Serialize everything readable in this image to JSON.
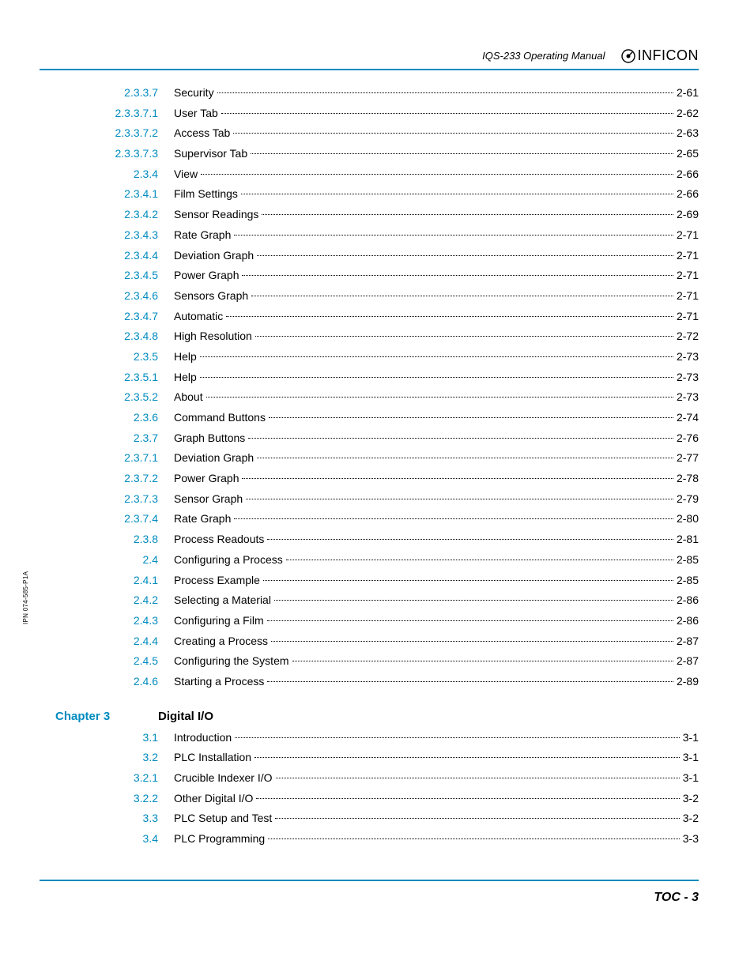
{
  "header": {
    "manual_title": "IQS-233 Operating Manual",
    "logo_text": "INFICON"
  },
  "side_label": "IPN 074-585-P1A",
  "toc_entries": [
    {
      "num": "2.3.3.7",
      "title": "Security",
      "page": "2-61"
    },
    {
      "num": "2.3.3.7.1",
      "title": "User Tab",
      "page": "2-62"
    },
    {
      "num": "2.3.3.7.2",
      "title": "Access Tab",
      "page": "2-63"
    },
    {
      "num": "2.3.3.7.3",
      "title": "Supervisor Tab",
      "page": "2-65"
    },
    {
      "num": "2.3.4",
      "title": "View",
      "page": "2-66"
    },
    {
      "num": "2.3.4.1",
      "title": "Film Settings",
      "page": "2-66"
    },
    {
      "num": "2.3.4.2",
      "title": "Sensor Readings",
      "page": "2-69"
    },
    {
      "num": "2.3.4.3",
      "title": "Rate Graph",
      "page": "2-71"
    },
    {
      "num": "2.3.4.4",
      "title": "Deviation Graph",
      "page": "2-71"
    },
    {
      "num": "2.3.4.5",
      "title": "Power Graph",
      "page": "2-71"
    },
    {
      "num": "2.3.4.6",
      "title": "Sensors Graph",
      "page": "2-71"
    },
    {
      "num": "2.3.4.7",
      "title": "Automatic",
      "page": "2-71"
    },
    {
      "num": "2.3.4.8",
      "title": "High Resolution",
      "page": "2-72"
    },
    {
      "num": "2.3.5",
      "title": "Help",
      "page": "2-73"
    },
    {
      "num": "2.3.5.1",
      "title": "Help",
      "page": "2-73"
    },
    {
      "num": "2.3.5.2",
      "title": "About",
      "page": "2-73"
    },
    {
      "num": "2.3.6",
      "title": "Command Buttons",
      "page": "2-74"
    },
    {
      "num": "2.3.7",
      "title": "Graph Buttons",
      "page": "2-76"
    },
    {
      "num": "2.3.7.1",
      "title": "Deviation Graph",
      "page": "2-77"
    },
    {
      "num": "2.3.7.2",
      "title": "Power Graph",
      "page": "2-78"
    },
    {
      "num": "2.3.7.3",
      "title": "Sensor Graph",
      "page": "2-79"
    },
    {
      "num": "2.3.7.4",
      "title": "Rate Graph",
      "page": "2-80"
    },
    {
      "num": "2.3.8",
      "title": "Process Readouts",
      "page": "2-81"
    },
    {
      "num": "2.4",
      "title": "Configuring a Process",
      "page": "2-85"
    },
    {
      "num": "2.4.1",
      "title": "Process Example",
      "page": "2-85"
    },
    {
      "num": "2.4.2",
      "title": "Selecting a Material",
      "page": "2-86"
    },
    {
      "num": "2.4.3",
      "title": "Configuring a Film",
      "page": "2-86"
    },
    {
      "num": "2.4.4",
      "title": "Creating a Process",
      "page": "2-87"
    },
    {
      "num": "2.4.5",
      "title": "Configuring the System",
      "page": "2-87"
    },
    {
      "num": "2.4.6",
      "title": "Starting a Process",
      "page": "2-89"
    }
  ],
  "chapter3": {
    "label": "Chapter 3",
    "title": "Digital I/O",
    "entries": [
      {
        "num": "3.1",
        "title": "Introduction",
        "page": "3-1"
      },
      {
        "num": "3.2",
        "title": "PLC Installation",
        "page": "3-1"
      },
      {
        "num": "3.2.1",
        "title": "Crucible Indexer I/O",
        "page": "3-1"
      },
      {
        "num": "3.2.2",
        "title": "Other Digital I/O",
        "page": "3-2"
      },
      {
        "num": "3.3",
        "title": "PLC Setup and Test",
        "page": "3-2"
      },
      {
        "num": "3.4",
        "title": "PLC Programming",
        "page": "3-3"
      }
    ]
  },
  "footer": {
    "page_label": "TOC - 3"
  },
  "style": {
    "link_color": "#008bbf",
    "text_color": "#000000",
    "rule_color": "#008bbf",
    "body_font_size_pt": 11,
    "chapter_font_size_pt": 12,
    "footer_font_size_pt": 13
  }
}
